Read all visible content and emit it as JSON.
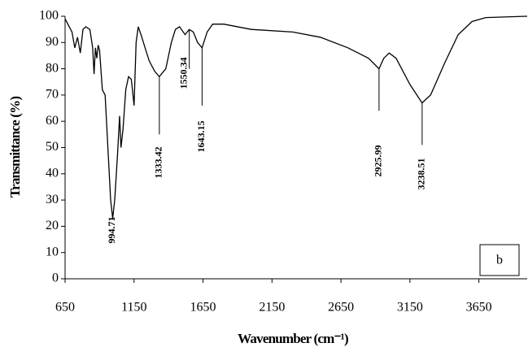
{
  "chart_data": {
    "type": "line",
    "x_label": "Wavenumber (cm⁻¹)",
    "y_label": "Transmittance (%)",
    "panel_label": "b",
    "xlim": [
      650,
      4000
    ],
    "xticks": [
      650,
      1150,
      1650,
      2150,
      2650,
      3150,
      3650
    ],
    "ylim": [
      0,
      100
    ],
    "yticks": [
      0,
      10,
      20,
      30,
      40,
      50,
      60,
      70,
      80,
      90,
      100
    ],
    "series": [
      {
        "color": "#000000",
        "x": [
          650,
          680,
          700,
          720,
          740,
          760,
          780,
          800,
          830,
          850,
          860,
          870,
          880,
          890,
          900,
          920,
          940,
          960,
          980,
          995,
          1010,
          1030,
          1045,
          1055,
          1070,
          1090,
          1110,
          1130,
          1150,
          1165,
          1180,
          1200,
          1230,
          1260,
          1300,
          1333,
          1380,
          1420,
          1450,
          1480,
          1520,
          1550,
          1580,
          1610,
          1643,
          1680,
          1720,
          1800,
          2000,
          2300,
          2500,
          2700,
          2850,
          2926,
          2960,
          3000,
          3050,
          3150,
          3238,
          3300,
          3400,
          3500,
          3600,
          3700,
          4000
        ],
        "values": [
          99,
          96,
          94,
          88,
          92,
          86,
          95,
          96,
          95,
          88,
          78,
          88,
          84,
          89,
          87,
          72,
          70,
          50,
          30,
          23,
          30,
          47,
          62,
          50,
          57,
          72,
          77,
          76,
          66,
          90,
          96,
          93,
          88,
          83,
          79,
          77,
          80,
          90,
          95,
          96,
          93,
          95,
          94,
          90,
          88,
          94,
          97,
          97,
          95,
          94,
          92,
          88,
          84,
          80,
          84,
          86,
          84,
          74,
          67,
          70,
          82,
          93,
          98,
          99.5,
          100
        ]
      }
    ],
    "annotations": [
      "994.71",
      "1333.42",
      "1550.34",
      "1643.15",
      "2925.99",
      "3238.51"
    ]
  }
}
